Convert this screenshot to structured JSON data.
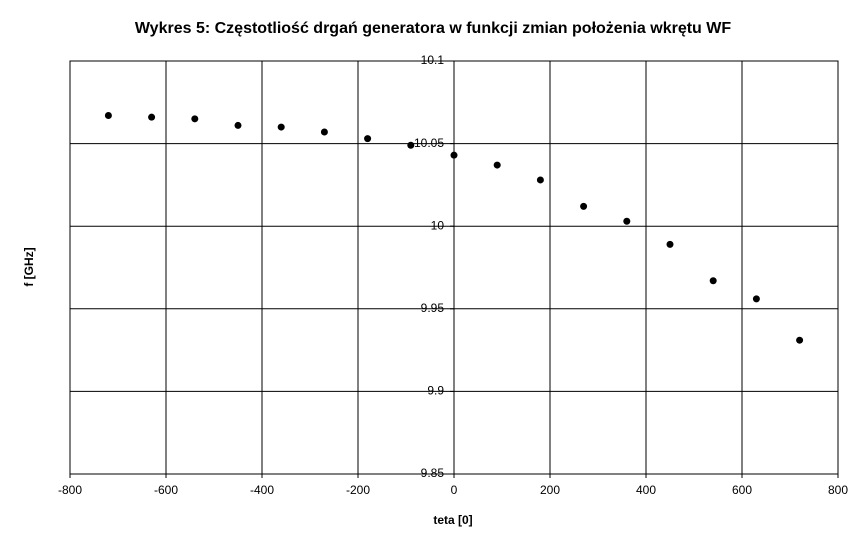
{
  "chart_data": {
    "type": "scatter",
    "title": "Wykres 5: Częstotliość drgań generatora w funkcji zmian położenia wkrętu WF",
    "x_label": "teta [0]",
    "y_label": "f [GHz]",
    "x": [
      -720,
      -630,
      -540,
      -450,
      -360,
      -270,
      -180,
      -90,
      0,
      90,
      180,
      270,
      360,
      450,
      540,
      630,
      720
    ],
    "values": [
      10.067,
      10.066,
      10.065,
      10.061,
      10.06,
      10.057,
      10.053,
      10.049,
      10.043,
      10.037,
      10.028,
      10.012,
      10.003,
      9.989,
      9.967,
      9.956,
      9.931
    ],
    "color": "#000000",
    "xlim": [
      -800,
      800
    ],
    "xticks": [
      -800,
      -600,
      -400,
      -200,
      0,
      200,
      400,
      600,
      800
    ],
    "ylim": [
      9.85,
      10.1
    ],
    "yticks": [
      9.85,
      9.9,
      9.95,
      10,
      10.05,
      10.1
    ],
    "grid": true
  }
}
